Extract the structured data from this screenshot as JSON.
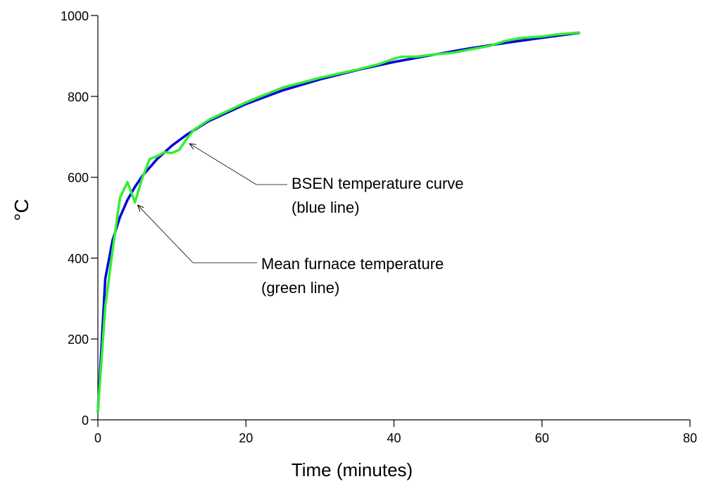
{
  "chart_data": {
    "type": "line",
    "title": "",
    "xlabel": "Time (minutes)",
    "ylabel": "°C",
    "xlim": [
      0,
      80
    ],
    "ylim": [
      0,
      1000
    ],
    "x_ticks": [
      0,
      20,
      40,
      60,
      80
    ],
    "y_ticks": [
      0,
      200,
      400,
      600,
      800,
      1000
    ],
    "x_tick_labels": [
      "0",
      "20",
      "40",
      "60",
      "80"
    ],
    "y_tick_labels": [
      "0",
      "200",
      "400",
      "600",
      "800",
      "1000"
    ],
    "grid": false,
    "legend": "none",
    "series": [
      {
        "color": "#0000dd",
        "x": [
          0,
          1,
          2,
          3,
          4,
          5,
          6,
          8,
          10,
          12,
          15,
          20,
          25,
          30,
          35,
          40,
          45,
          50,
          55,
          60,
          65
        ],
        "y": [
          20,
          349,
          445,
          502,
          544,
          576,
          603,
          645,
          678,
          705,
          739,
          781,
          815,
          842,
          865,
          885,
          902,
          918,
          932,
          945,
          957
        ]
      },
      {
        "color": "#33ee33",
        "x": [
          0,
          1,
          2,
          3,
          4,
          5,
          6,
          7,
          8,
          9,
          10,
          11,
          12,
          13,
          15,
          18,
          20,
          22,
          25,
          28,
          30,
          33,
          35,
          38,
          40,
          41,
          43,
          45,
          48,
          50,
          53,
          55,
          57,
          60,
          62,
          65
        ],
        "y": [
          20,
          280,
          420,
          550,
          588,
          538,
          598,
          645,
          652,
          662,
          660,
          668,
          695,
          718,
          742,
          768,
          785,
          800,
          822,
          836,
          846,
          858,
          866,
          880,
          893,
          898,
          898,
          903,
          908,
          915,
          925,
          937,
          944,
          948,
          953,
          958
        ]
      }
    ],
    "annotations": [
      {
        "text_lines": [
          "BSEN temperature curve",
          "(blue line)"
        ],
        "target": [
          12,
          690
        ]
      },
      {
        "text_lines": [
          "Mean furnace temperature",
          "(green line)"
        ],
        "target": [
          5,
          538
        ]
      }
    ]
  }
}
